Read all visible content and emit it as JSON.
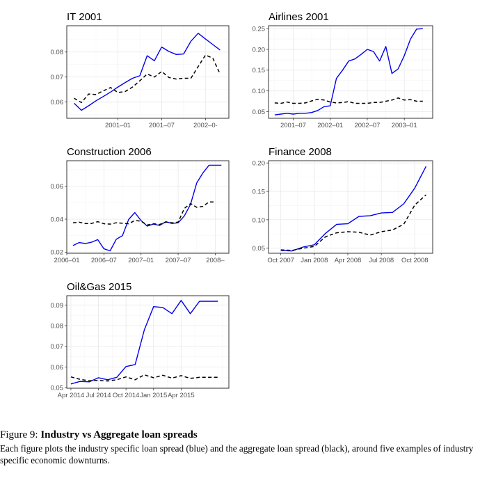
{
  "caption": {
    "label": "Figure 9:",
    "title": "Industry vs Aggregate loan spreads",
    "text": "Each figure plots the industry specific loan spread (blue) and the aggregate loan spread (black), around five examples of industry specific economic downturns."
  },
  "colors": {
    "industry": "#0000ee",
    "aggregate": "#000000"
  },
  "chart_data": [
    {
      "type": "line",
      "title": "IT 2001",
      "xlim": [
        0,
        22.2
      ],
      "ylim": [
        0.0535,
        0.0905
      ],
      "xticks": [
        {
          "x": 7,
          "label": "2001–01"
        },
        {
          "x": 13,
          "label": "2001–07"
        },
        {
          "x": 19,
          "label": "2002–0·"
        }
      ],
      "yticks": [
        {
          "y": 0.06,
          "label": "0.06"
        },
        {
          "y": 0.07,
          "label": "0.07"
        },
        {
          "y": 0.08,
          "label": "0.08"
        }
      ],
      "series": [
        {
          "name": "industry",
          "style": "solid",
          "x": [
            1,
            2,
            3,
            4,
            5,
            6,
            7,
            8,
            9,
            10,
            11,
            12,
            13,
            14,
            15,
            16,
            17,
            18,
            19,
            20,
            21
          ],
          "values": [
            0.0595,
            0.0567,
            0.0585,
            0.0605,
            0.0622,
            0.064,
            0.066,
            0.0678,
            0.0695,
            0.0705,
            0.0785,
            0.0765,
            0.082,
            0.0802,
            0.079,
            0.0792,
            0.0843,
            0.0875,
            0.0852,
            0.083,
            0.0808
          ]
        },
        {
          "name": "aggregate",
          "style": "dashed",
          "x": [
            1,
            2,
            3,
            4,
            5,
            6,
            7,
            8,
            9,
            10,
            11,
            12,
            13,
            14,
            15,
            16,
            17,
            18,
            19,
            20,
            21
          ],
          "values": [
            0.0615,
            0.0598,
            0.0632,
            0.063,
            0.0645,
            0.0658,
            0.0638,
            0.0642,
            0.066,
            0.0685,
            0.0712,
            0.07,
            0.0722,
            0.0698,
            0.0692,
            0.0695,
            0.0695,
            0.0742,
            0.0788,
            0.0775,
            0.0712
          ]
        }
      ]
    },
    {
      "type": "line",
      "title": "Airlines 2001",
      "xlim": [
        0,
        26.6
      ],
      "ylim": [
        0.034,
        0.257
      ],
      "xticks": [
        {
          "x": 4,
          "label": "2001–07"
        },
        {
          "x": 10,
          "label": "2002–01"
        },
        {
          "x": 16,
          "label": "2002–07"
        },
        {
          "x": 22,
          "label": "2003–01"
        }
      ],
      "yticks": [
        {
          "y": 0.05,
          "label": "0.05"
        },
        {
          "y": 0.1,
          "label": "0.10"
        },
        {
          "y": 0.15,
          "label": "0.15"
        },
        {
          "y": 0.2,
          "label": "0.20"
        },
        {
          "y": 0.25,
          "label": "0.25"
        }
      ],
      "series": [
        {
          "name": "industry",
          "style": "solid",
          "x": [
            1,
            2,
            3,
            4,
            5,
            6,
            7,
            8,
            9,
            10,
            11,
            12,
            13,
            14,
            15,
            16,
            17,
            18,
            19,
            20,
            21,
            22,
            23,
            24,
            25
          ],
          "values": [
            0.042,
            0.044,
            0.046,
            0.044,
            0.046,
            0.046,
            0.048,
            0.053,
            0.062,
            0.064,
            0.13,
            0.15,
            0.172,
            0.177,
            0.188,
            0.2,
            0.195,
            0.172,
            0.207,
            0.142,
            0.153,
            0.185,
            0.225,
            0.249,
            0.25
          ]
        },
        {
          "name": "aggregate",
          "style": "dashed",
          "x": [
            1,
            2,
            3,
            4,
            5,
            6,
            7,
            8,
            9,
            10,
            11,
            12,
            13,
            14,
            15,
            16,
            17,
            18,
            19,
            20,
            21,
            22,
            23,
            24,
            25
          ],
          "values": [
            0.071,
            0.07,
            0.073,
            0.07,
            0.07,
            0.071,
            0.076,
            0.08,
            0.078,
            0.073,
            0.071,
            0.072,
            0.074,
            0.07,
            0.07,
            0.07,
            0.072,
            0.072,
            0.075,
            0.078,
            0.083,
            0.078,
            0.079,
            0.075,
            0.075
          ]
        }
      ]
    },
    {
      "type": "line",
      "title": "Construction 2006",
      "xlim": [
        0,
        26.2
      ],
      "ylim": [
        0.0193,
        0.0755
      ],
      "xticks": [
        {
          "x": 0,
          "label": "2006–01"
        },
        {
          "x": 6,
          "label": "2006–07"
        },
        {
          "x": 12,
          "label": "2007–01"
        },
        {
          "x": 18,
          "label": "2007–07"
        },
        {
          "x": 24,
          "label": "2008–"
        }
      ],
      "yticks": [
        {
          "y": 0.02,
          "label": "0.02"
        },
        {
          "y": 0.04,
          "label": "0.04"
        },
        {
          "y": 0.06,
          "label": "0.06"
        }
      ],
      "series": [
        {
          "name": "industry",
          "style": "solid",
          "x": [
            1,
            2,
            3,
            4,
            5,
            6,
            7,
            8,
            9,
            10,
            11,
            12,
            13,
            14,
            15,
            16,
            17,
            18,
            19,
            20,
            21,
            22,
            23,
            24,
            25
          ],
          "values": [
            0.024,
            0.0258,
            0.0252,
            0.026,
            0.0276,
            0.022,
            0.0208,
            0.0278,
            0.03,
            0.0398,
            0.044,
            0.0392,
            0.0358,
            0.037,
            0.0362,
            0.0385,
            0.0374,
            0.0378,
            0.042,
            0.049,
            0.062,
            0.068,
            0.0728,
            0.0728,
            0.0728
          ]
        },
        {
          "name": "aggregate",
          "style": "dashed",
          "x": [
            1,
            2,
            3,
            4,
            5,
            6,
            7,
            8,
            9,
            10,
            11,
            12,
            13,
            14,
            15,
            16,
            17,
            18,
            19,
            20,
            21,
            22,
            23,
            24
          ],
          "values": [
            0.0378,
            0.0382,
            0.0373,
            0.0374,
            0.0385,
            0.0372,
            0.037,
            0.0378,
            0.0375,
            0.0372,
            0.0392,
            0.0388,
            0.0365,
            0.0372,
            0.0368,
            0.0382,
            0.0378,
            0.0382,
            0.0465,
            0.0495,
            0.0472,
            0.0478,
            0.0505,
            0.0505
          ]
        }
      ]
    },
    {
      "type": "line",
      "title": "Finance 2008",
      "xlim": [
        -1.1,
        13.6
      ],
      "ylim": [
        0.041,
        0.204
      ],
      "xticks": [
        {
          "x": 0,
          "label": "Oct 2007"
        },
        {
          "x": 3,
          "label": "Jan 2008"
        },
        {
          "x": 6,
          "label": "Apr 2008"
        },
        {
          "x": 9,
          "label": "Jul 2008"
        },
        {
          "x": 12,
          "label": "Oct 2008"
        }
      ],
      "yticks": [
        {
          "y": 0.05,
          "label": "0.05"
        },
        {
          "y": 0.1,
          "label": "0.10"
        },
        {
          "y": 0.15,
          "label": "0.15"
        },
        {
          "y": 0.2,
          "label": "0.20"
        }
      ],
      "series": [
        {
          "name": "industry",
          "style": "solid",
          "x": [
            0,
            1,
            2,
            3,
            4,
            5,
            6,
            7,
            8,
            9,
            10,
            11,
            12,
            13
          ],
          "values": [
            0.046,
            0.045,
            0.052,
            0.056,
            0.076,
            0.092,
            0.093,
            0.106,
            0.107,
            0.112,
            0.113,
            0.128,
            0.156,
            0.194
          ]
        },
        {
          "name": "aggregate",
          "style": "dashed",
          "x": [
            0,
            1,
            2,
            3,
            4,
            5,
            6,
            7,
            8,
            9,
            10,
            11,
            12,
            13
          ],
          "values": [
            0.047,
            0.046,
            0.05,
            0.053,
            0.07,
            0.077,
            0.079,
            0.078,
            0.073,
            0.079,
            0.082,
            0.092,
            0.126,
            0.144
          ]
        }
      ]
    },
    {
      "type": "line",
      "title": "Oil&Gas 2015",
      "xlim": [
        0.55,
        18.2
      ],
      "ylim": [
        0.0497,
        0.0945
      ],
      "xticks": [
        {
          "x": 1,
          "label": "Apr 2014"
        },
        {
          "x": 4,
          "label": "Jul 2014"
        },
        {
          "x": 7,
          "label": "Oct 2014"
        },
        {
          "x": 10,
          "label": "Jan 2015"
        },
        {
          "x": 13,
          "label": "Apr 2015"
        }
      ],
      "yticks": [
        {
          "y": 0.05,
          "label": "0.05"
        },
        {
          "y": 0.06,
          "label": "0.06"
        },
        {
          "y": 0.07,
          "label": "0.07"
        },
        {
          "y": 0.08,
          "label": "0.08"
        },
        {
          "y": 0.09,
          "label": "0.09"
        }
      ],
      "series": [
        {
          "name": "industry",
          "style": "solid",
          "x": [
            1,
            2,
            3,
            4,
            5,
            6,
            7,
            8,
            9,
            10,
            11,
            12,
            13,
            14,
            15,
            16,
            17
          ],
          "values": [
            0.0518,
            0.053,
            0.0528,
            0.0548,
            0.0538,
            0.055,
            0.0602,
            0.0612,
            0.078,
            0.0892,
            0.0888,
            0.0858,
            0.0922,
            0.0858,
            0.0918,
            0.0918,
            0.0918
          ]
        },
        {
          "name": "aggregate",
          "style": "dashed",
          "x": [
            1,
            2,
            3,
            4,
            5,
            6,
            7,
            8,
            9,
            10,
            11,
            12,
            13,
            14,
            15,
            16,
            17
          ],
          "values": [
            0.0552,
            0.054,
            0.0533,
            0.0535,
            0.0532,
            0.0538,
            0.0552,
            0.0538,
            0.0562,
            0.0548,
            0.056,
            0.0546,
            0.0558,
            0.0545,
            0.055,
            0.055,
            0.055
          ]
        }
      ]
    }
  ]
}
